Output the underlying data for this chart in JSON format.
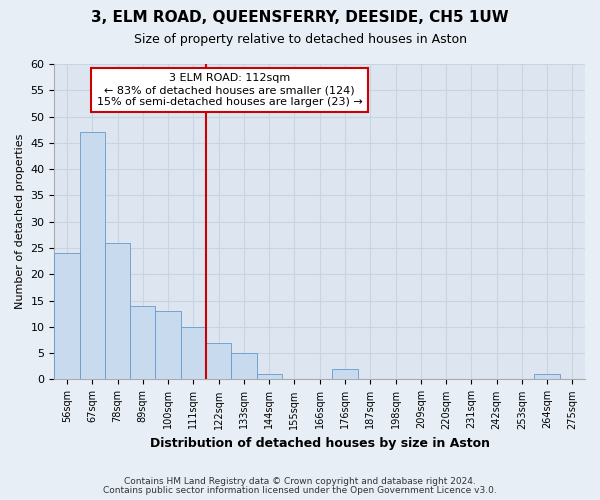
{
  "title": "3, ELM ROAD, QUEENSFERRY, DEESIDE, CH5 1UW",
  "subtitle": "Size of property relative to detached houses in Aston",
  "xlabel": "Distribution of detached houses by size in Aston",
  "ylabel": "Number of detached properties",
  "bar_color": "#c8daee",
  "bar_edgecolor": "#6699cc",
  "bin_labels": [
    "56sqm",
    "67sqm",
    "78sqm",
    "89sqm",
    "100sqm",
    "111sqm",
    "122sqm",
    "133sqm",
    "144sqm",
    "155sqm",
    "166sqm",
    "176sqm",
    "187sqm",
    "198sqm",
    "209sqm",
    "220sqm",
    "231sqm",
    "242sqm",
    "253sqm",
    "264sqm",
    "275sqm"
  ],
  "bar_heights": [
    24,
    47,
    26,
    14,
    13,
    10,
    7,
    5,
    1,
    0,
    0,
    2,
    0,
    0,
    0,
    0,
    0,
    0,
    0,
    1,
    0
  ],
  "ylim": [
    0,
    60
  ],
  "yticks": [
    0,
    5,
    10,
    15,
    20,
    25,
    30,
    35,
    40,
    45,
    50,
    55,
    60
  ],
  "vline_x": 5.5,
  "vline_color": "#cc0000",
  "annotation_title": "3 ELM ROAD: 112sqm",
  "annotation_line1": "← 83% of detached houses are smaller (124)",
  "annotation_line2": "15% of semi-detached houses are larger (23) →",
  "annotation_box_facecolor": "#ffffff",
  "annotation_box_edgecolor": "#cc0000",
  "footer1": "Contains HM Land Registry data © Crown copyright and database right 2024.",
  "footer2": "Contains public sector information licensed under the Open Government Licence v3.0.",
  "fig_facecolor": "#e8eef5",
  "plot_facecolor": "#e8eef5",
  "grid_color": "#c8d4e0",
  "grid_facecolor": "#dde6f0"
}
